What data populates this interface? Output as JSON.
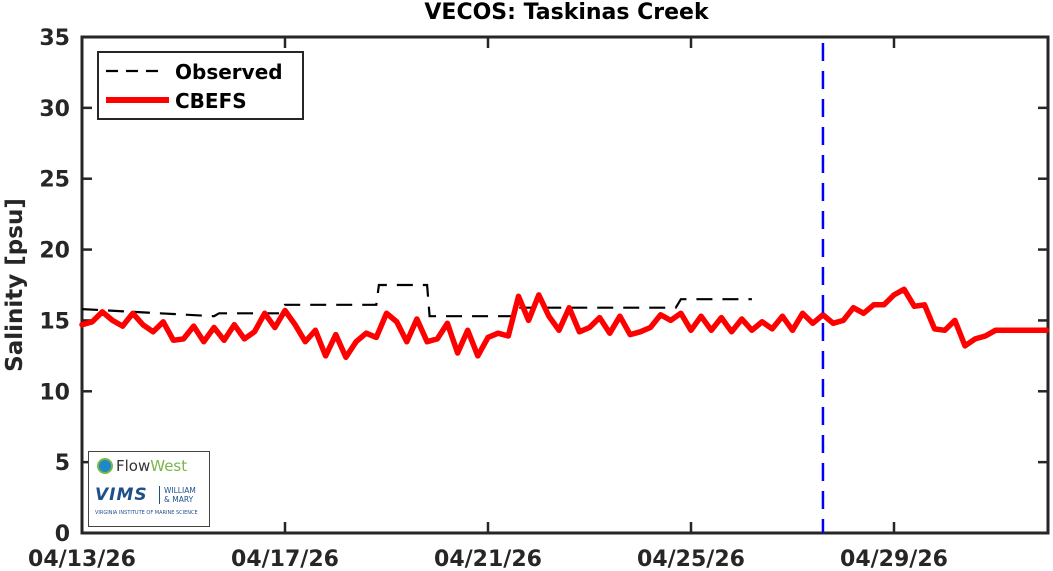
{
  "chart_data": {
    "type": "line",
    "title": "VECOS: Taskinas Creek",
    "xlabel": "",
    "ylabel": "Salinity [psu]",
    "ylim": [
      0,
      35
    ],
    "yticks": [
      0,
      5,
      10,
      15,
      20,
      25,
      30,
      35
    ],
    "xlim_days": [
      0,
      19
    ],
    "xticks": [
      {
        "day": 0,
        "label": "04/13/26"
      },
      {
        "day": 4,
        "label": "04/17/26"
      },
      {
        "day": 8,
        "label": "04/21/26"
      },
      {
        "day": 12,
        "label": "04/25/26"
      },
      {
        "day": 16,
        "label": "04/29/26"
      }
    ],
    "grid": false,
    "legend_position": "upper left",
    "forecast_marker": {
      "day": 14.6,
      "color": "#0000ff",
      "style": "dashed"
    },
    "series": [
      {
        "name": "Observed",
        "color": "#000000",
        "style": "dashed",
        "x_days": [
          0,
          2.6,
          2.7,
          3.9,
          4.0,
          5.8,
          5.85,
          6.8,
          6.85,
          8.5,
          8.6,
          11.7,
          11.8,
          13.2
        ],
        "values": [
          15.8,
          15.3,
          15.5,
          15.5,
          16.1,
          16.1,
          17.5,
          17.5,
          15.3,
          15.3,
          15.9,
          15.9,
          16.5,
          16.5
        ]
      },
      {
        "name": "CBEFS",
        "color": "#ff0000",
        "style": "solid",
        "x_days": [
          0,
          0.2,
          0.4,
          0.6,
          0.8,
          1.0,
          1.2,
          1.4,
          1.6,
          1.8,
          2.0,
          2.2,
          2.4,
          2.6,
          2.8,
          3.0,
          3.2,
          3.4,
          3.6,
          3.8,
          4.0,
          4.2,
          4.4,
          4.6,
          4.8,
          5.0,
          5.2,
          5.4,
          5.6,
          5.8,
          6.0,
          6.2,
          6.4,
          6.6,
          6.8,
          7.0,
          7.2,
          7.4,
          7.6,
          7.8,
          8.0,
          8.2,
          8.4,
          8.6,
          8.8,
          9.0,
          9.2,
          9.4,
          9.6,
          9.8,
          10.0,
          10.2,
          10.4,
          10.6,
          10.8,
          11.0,
          11.2,
          11.4,
          11.6,
          11.8,
          12.0,
          12.2,
          12.4,
          12.6,
          12.8,
          13.0,
          13.2,
          13.4,
          13.6,
          13.8,
          14.0,
          14.2,
          14.4,
          14.6,
          14.8,
          15.0,
          15.2,
          15.4,
          15.6,
          15.8,
          16.0,
          16.2,
          16.4,
          16.6,
          16.8,
          17.0,
          17.2,
          17.4,
          17.6,
          17.8,
          18.0,
          18.2,
          18.4,
          18.6,
          18.8,
          19.0
        ],
        "values": [
          14.7,
          14.9,
          15.6,
          15.0,
          14.6,
          15.5,
          14.7,
          14.2,
          14.9,
          13.6,
          13.7,
          14.6,
          13.5,
          14.5,
          13.6,
          14.7,
          13.7,
          14.2,
          15.5,
          14.5,
          15.7,
          14.7,
          13.5,
          14.3,
          12.5,
          14.0,
          12.4,
          13.5,
          14.1,
          13.8,
          15.5,
          14.9,
          13.5,
          15.1,
          13.5,
          13.7,
          14.8,
          12.7,
          14.3,
          12.5,
          13.8,
          14.1,
          13.9,
          16.7,
          15.0,
          16.8,
          15.3,
          14.3,
          15.9,
          14.2,
          14.5,
          15.2,
          14.1,
          15.3,
          14.0,
          14.2,
          14.5,
          15.4,
          15.0,
          15.5,
          14.3,
          15.3,
          14.3,
          15.2,
          14.2,
          15.1,
          14.3,
          14.9,
          14.4,
          15.3,
          14.3,
          15.5,
          14.8,
          15.4,
          14.8,
          15.0,
          15.9,
          15.5,
          16.1,
          16.1,
          16.8,
          17.2,
          16.0,
          16.1,
          14.4,
          14.3,
          15.0,
          13.2,
          13.7,
          13.9,
          14.3,
          14.3,
          14.3,
          14.3,
          14.3,
          14.3
        ]
      }
    ]
  },
  "legend": {
    "observed_label": "Observed",
    "cbefs_label": "CBEFS"
  },
  "logos": {
    "flowwest_flow": "Flow",
    "flowwest_west": "West",
    "vims": "VIMS",
    "wm_line1": "WILLIAM",
    "wm_line2": "& MARY",
    "vims_sub": "VIRGINIA INSTITUTE OF MARINE SCIENCE"
  }
}
